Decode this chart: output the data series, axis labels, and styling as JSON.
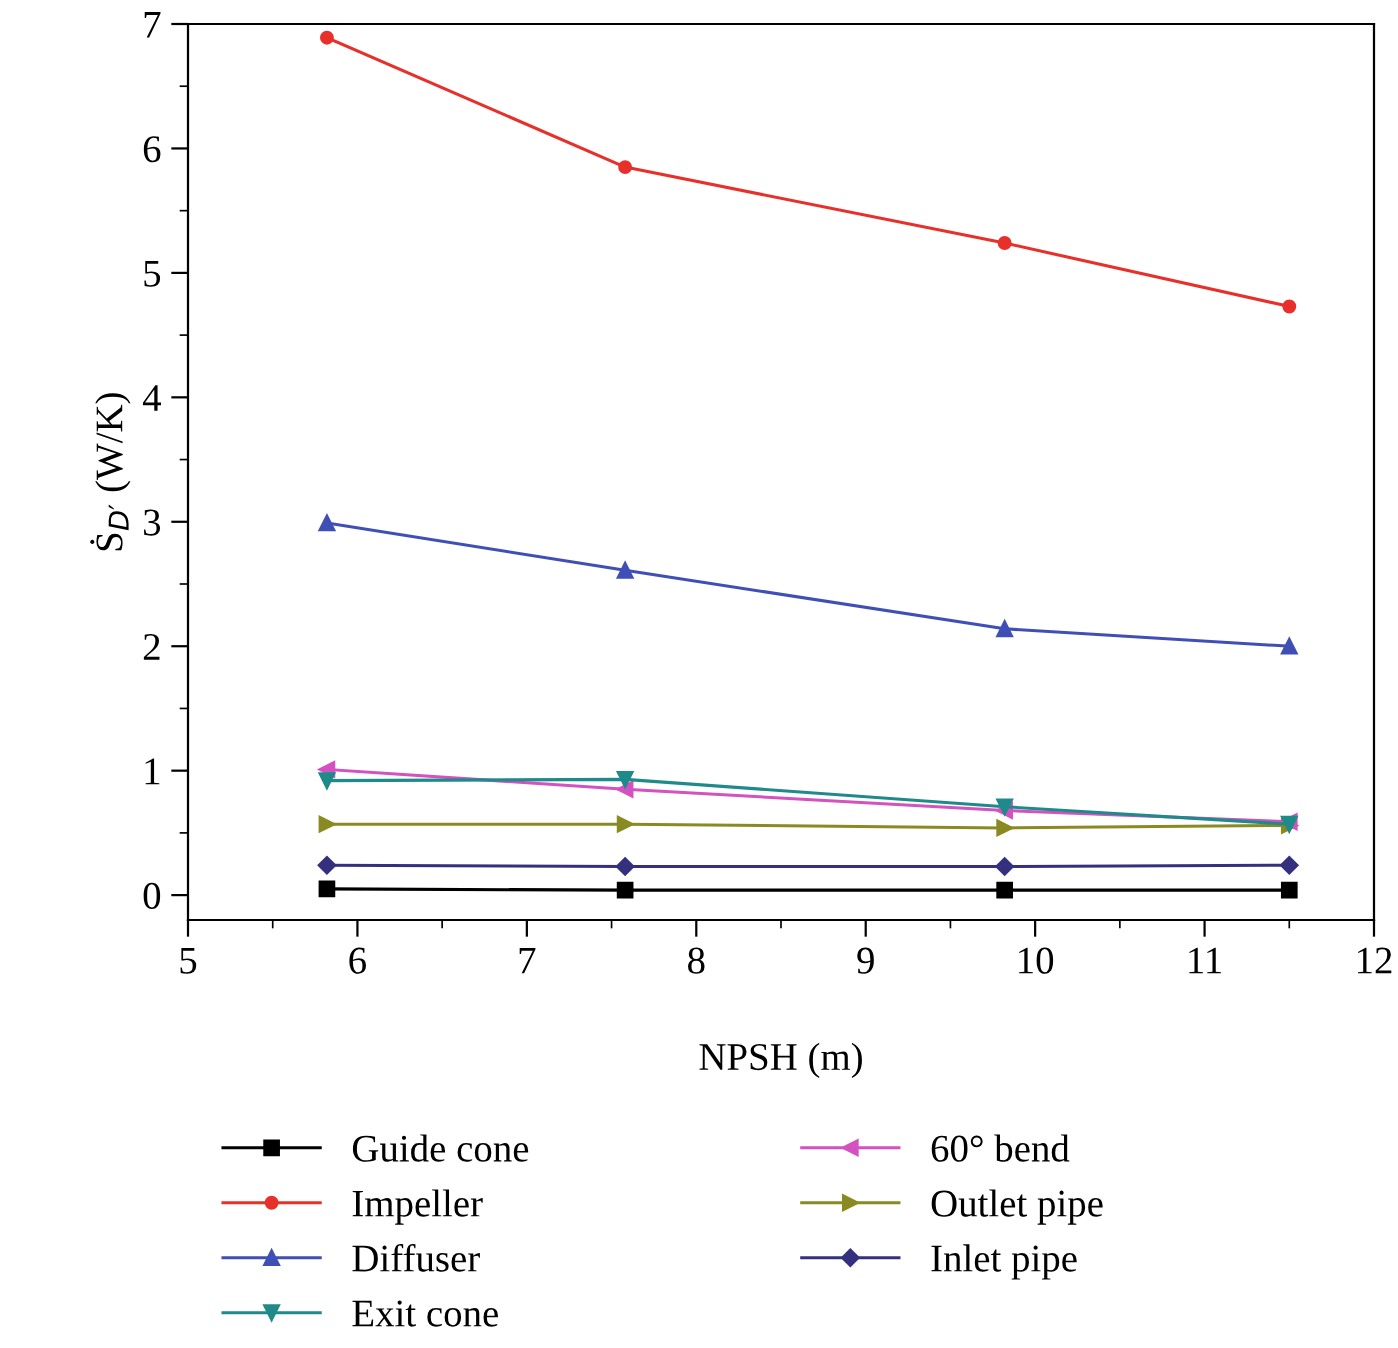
{
  "chart_data": {
    "type": "line",
    "xlabel": "NPSH (m)",
    "ylabel": "Ṡ$_{D′}$ (W/K)",
    "x": [
      5.82,
      7.58,
      9.82,
      11.5
    ],
    "series": [
      {
        "name": "Guide cone",
        "color": "#000000",
        "marker": "square",
        "values": [
          0.05,
          0.04,
          0.04,
          0.04
        ]
      },
      {
        "name": "Impeller",
        "color": "#e8302a",
        "marker": "circle",
        "values": [
          6.89,
          5.85,
          5.24,
          4.73
        ]
      },
      {
        "name": "Diffuser",
        "color": "#3f4fb5",
        "marker": "triangle",
        "values": [
          2.99,
          2.61,
          2.14,
          2.0
        ]
      },
      {
        "name": "Exit cone",
        "color": "#1f8a8a",
        "marker": "triangle_down",
        "values": [
          0.92,
          0.93,
          0.71,
          0.57
        ]
      },
      {
        "name": "60° bend",
        "color": "#d352c0",
        "marker": "triangle_left",
        "values": [
          1.01,
          0.85,
          0.68,
          0.59
        ]
      },
      {
        "name": "Outlet pipe",
        "color": "#8a8a22",
        "marker": "triangle_right",
        "values": [
          0.57,
          0.57,
          0.54,
          0.56
        ]
      },
      {
        "name": "Inlet pipe",
        "color": "#35307e",
        "marker": "diamond",
        "values": [
          0.24,
          0.23,
          0.23,
          0.24
        ]
      }
    ],
    "xlim": [
      5,
      12
    ],
    "xticks": [
      5,
      6,
      7,
      8,
      9,
      10,
      11,
      12
    ],
    "ylim": [
      -0.2,
      7
    ],
    "yticks": [
      0,
      1,
      2,
      3,
      4,
      5,
      6,
      7
    ],
    "grid": false,
    "legend": "bottom",
    "line_style": "solid"
  }
}
